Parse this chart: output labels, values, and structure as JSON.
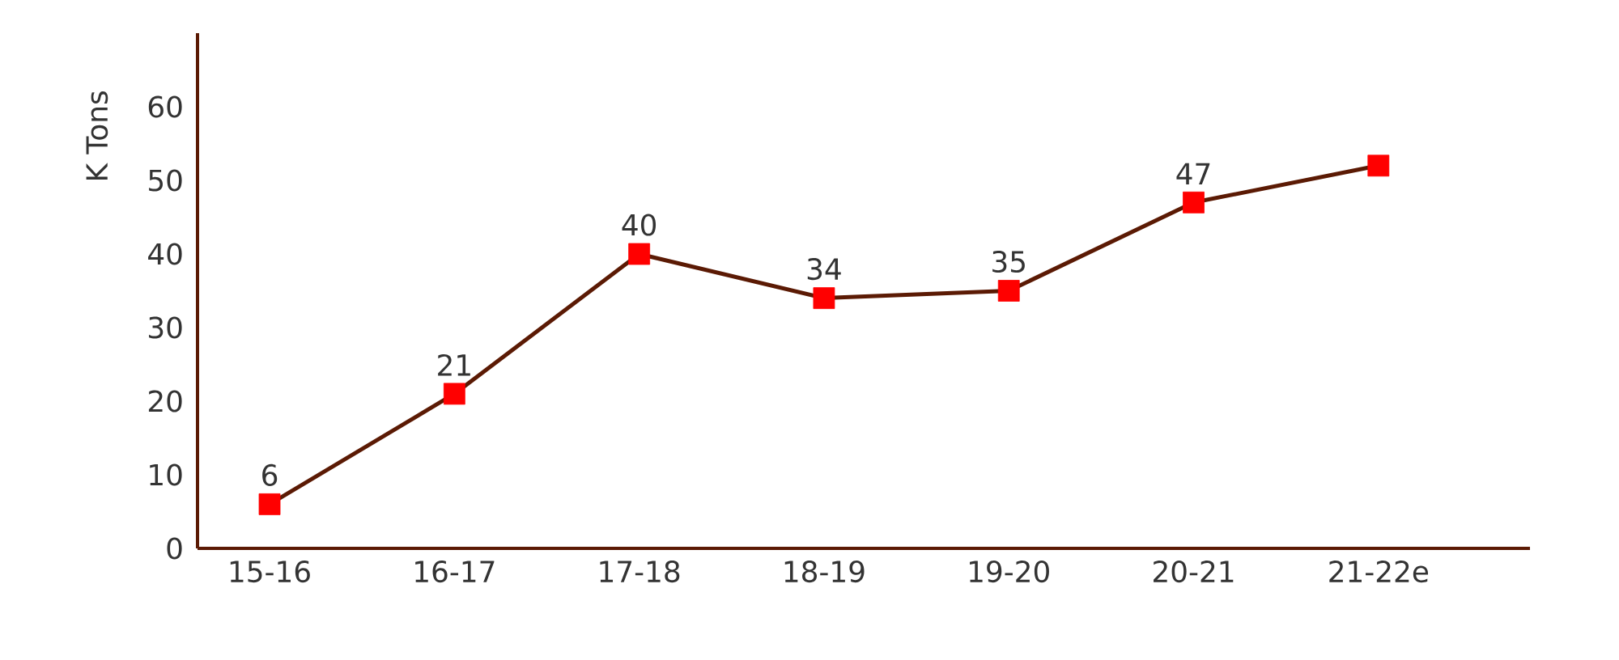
{
  "chart_data": {
    "type": "line",
    "ylabel": "K Tons",
    "categories": [
      "15-16",
      "16-17",
      "17-18",
      "18-19",
      "19-20",
      "20-21",
      "21-22e"
    ],
    "series": [
      {
        "color": "#5b1a04",
        "colors": [
          "#ff0000",
          "#ff0000",
          "#ff0000",
          "#ff0000",
          "#ff0000",
          "#ff0000",
          "#ff0000"
        ],
        "values": [
          6,
          21,
          40,
          34,
          35,
          47,
          52
        ],
        "value_labels": [
          "6",
          "21",
          "40",
          "34",
          "35",
          "47",
          null
        ]
      }
    ],
    "ylim": [
      0,
      70
    ],
    "yticks": [
      0,
      10,
      20,
      30,
      40,
      50,
      60
    ],
    "marker": "square",
    "line_style": "solid"
  }
}
